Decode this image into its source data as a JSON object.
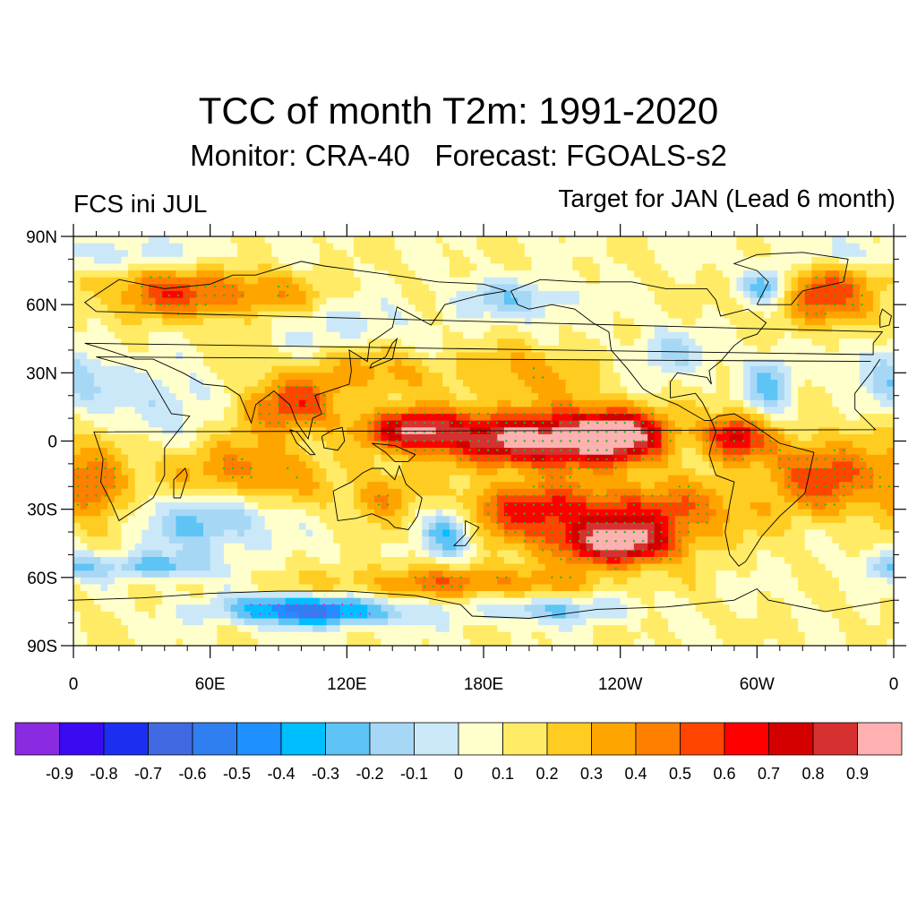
{
  "title": "TCC of month T2m: 1991-2020",
  "subtitle": "Monitor: CRA-40   Forecast: FGOALS-s2",
  "left_label": "FCS ini JUL",
  "right_label": "Target for JAN (Lead 6 month)",
  "map": {
    "projection": "cylindrical-equidistant",
    "lon_range": [
      0,
      360
    ],
    "lat_range": [
      -90,
      90
    ],
    "field": "TCC of T2m",
    "stipple_colors": {
      "positive": "#22bb22",
      "negative": "#ee22ee"
    },
    "land_outline_color": "#000000",
    "lat_ticks": [
      {
        "value": 90,
        "label": "90N"
      },
      {
        "value": 60,
        "label": "60N"
      },
      {
        "value": 30,
        "label": "30N"
      },
      {
        "value": 0,
        "label": "0"
      },
      {
        "value": -30,
        "label": "30S"
      },
      {
        "value": -60,
        "label": "60S"
      },
      {
        "value": -90,
        "label": "90S"
      }
    ],
    "lon_ticks": [
      {
        "value": 0,
        "label": "0"
      },
      {
        "value": 60,
        "label": "60E"
      },
      {
        "value": 120,
        "label": "120E"
      },
      {
        "value": 180,
        "label": "180E"
      },
      {
        "value": 240,
        "label": "120W"
      },
      {
        "value": 300,
        "label": "60W"
      },
      {
        "value": 360,
        "label": "0"
      }
    ]
  },
  "colorbar": {
    "colors": [
      "#8a2be2",
      "#3a0af0",
      "#1c2ff0",
      "#4169e1",
      "#2f7ff0",
      "#1e90ff",
      "#00bfff",
      "#5ec4f5",
      "#a6d8f5",
      "#cbe8f8",
      "#ffffcc",
      "#ffeb66",
      "#ffcc22",
      "#ffa500",
      "#ff7f00",
      "#ff4500",
      "#ff0000",
      "#d40000",
      "#d73030",
      "#ffb0b0"
    ],
    "labels": [
      "-0.9",
      "-0.8",
      "-0.7",
      "-0.6",
      "-0.5",
      "-0.4",
      "-0.3",
      "-0.2",
      "-0.1",
      "0",
      "0.1",
      "0.2",
      "0.3",
      "0.4",
      "0.5",
      "0.6",
      "0.7",
      "0.8",
      "0.9"
    ]
  }
}
